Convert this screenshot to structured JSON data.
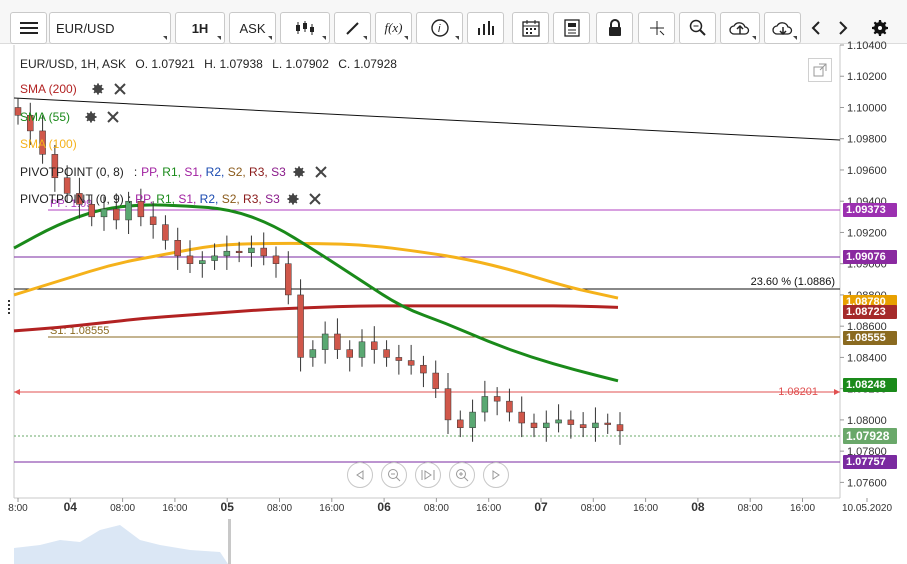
{
  "toolbar": {
    "symbol": "EUR/USD",
    "timeframe": "1H",
    "price_type": "ASK",
    "fx_label": "f(x)",
    "icons": [
      "menu-icon",
      "candles-icon",
      "draw-pencil-icon",
      "function-icon",
      "info-icon",
      "bar-chart-icon",
      "calendar-icon",
      "news-icon",
      "lock-icon",
      "crosshair-icon",
      "zoom-icon",
      "cloud-upload-icon",
      "cloud-download-icon",
      "chevron-left-icon",
      "chevron-right-icon",
      "settings-gear-icon"
    ]
  },
  "info": {
    "instrument": "EUR/USD, 1H, ASK",
    "open": "O. 1.07921",
    "high": "H. 1.07938",
    "low": "L. 1.07902",
    "close": "C. 1.07928"
  },
  "indicators": [
    {
      "label": "SMA (200)",
      "color": "#b22222"
    },
    {
      "label": "SMA (55)",
      "color": "#1a8a1a"
    },
    {
      "label": "SMA (100)",
      "color": "#f5b21b"
    }
  ],
  "pivots": [
    {
      "label": "PIVOTPOINT (0, 8)",
      "parts": [
        "PP,",
        "R1,",
        "S1,",
        "R2,",
        "S2,",
        "R3,",
        "S3"
      ]
    },
    {
      "label": "PIVOTPOINT (0, 9)",
      "parts": [
        "PP,",
        "R1,",
        "S1,",
        "R2,",
        "S2,",
        "R3,",
        "S3"
      ]
    }
  ],
  "pivot_colors": [
    "#a020a0",
    "#1a8a1a",
    "#a020a0",
    "#1a4ab0",
    "#8a5a1a",
    "#8a1a1a",
    "#8a1a8a"
  ],
  "annotations": {
    "fib": "23.60 % (1.0886)",
    "s1": "S1: 1.08555",
    "hline": "1.08201",
    "pp": "PP: 1.09"
  },
  "price_tags": [
    {
      "value": "1.09373",
      "color": "#9b30b0"
    },
    {
      "value": "1.09076",
      "color": "#8a2aa0"
    },
    {
      "value": "1.08780",
      "color": "#e8a000"
    },
    {
      "value": "1.08723",
      "color": "#a52a2a"
    },
    {
      "value": "1.08555",
      "color": "#8a6a20"
    },
    {
      "value": "1.08248",
      "color": "#1a8a1a"
    },
    {
      "value": "1.07928",
      "color": "#6aa86a"
    },
    {
      "value": "1.07757",
      "color": "#7a2aa0"
    }
  ],
  "y_axis": [
    "1.10400",
    "1.10200",
    "1.10000",
    "1.09800",
    "1.09600",
    "1.09400",
    "1.09200",
    "1.09000",
    "1.08800",
    "1.08600",
    "1.08400",
    "1.08200",
    "1.08000",
    "1.07800",
    "1.07600"
  ],
  "x_axis": [
    "8:00",
    "04",
    "08:00",
    "16:00",
    "05",
    "08:00",
    "16:00",
    "06",
    "08:00",
    "16:00",
    "07",
    "08:00",
    "16:00",
    "08",
    "08:00",
    "16:00",
    "10.05.2020"
  ],
  "chart_data": {
    "type": "line",
    "instrument": "EUR/USD",
    "candles_close_approx": [
      1.0995,
      1.0985,
      1.097,
      1.0955,
      1.0945,
      1.0938,
      1.093,
      1.0935,
      1.0928,
      1.094,
      1.093,
      1.0925,
      1.0915,
      1.0905,
      1.09,
      1.0902,
      1.0905,
      1.0908,
      1.0907,
      1.091,
      1.0905,
      1.09,
      1.088,
      1.084,
      1.0845,
      1.0855,
      1.0845,
      1.084,
      1.085,
      1.0845,
      1.084,
      1.0838,
      1.0835,
      1.083,
      1.082,
      1.08,
      1.0795,
      1.0805,
      1.0815,
      1.0812,
      1.0805,
      1.0798,
      1.0795,
      1.0798,
      1.08,
      1.0797,
      1.0795,
      1.0798,
      1.0797,
      1.0793
    ],
    "series": [
      {
        "name": "SMA (200)",
        "values": [
          1.0857,
          1.0859,
          1.0862,
          1.0865,
          1.0867,
          1.0869,
          1.0871,
          1.0872,
          1.0873,
          1.0873,
          1.0873,
          1.0873,
          1.0873,
          1.0873,
          1.0872
        ]
      },
      {
        "name": "SMA (55)",
        "values": [
          1.091,
          1.0925,
          1.0935,
          1.0938,
          1.0937,
          1.0935,
          1.0925,
          1.0908,
          1.089,
          1.0872,
          1.0862,
          1.085,
          1.084,
          1.0832,
          1.0825
        ]
      },
      {
        "name": "SMA (100)",
        "values": [
          1.088,
          1.089,
          1.09,
          1.0906,
          1.0912,
          1.0913,
          1.0913,
          1.0912,
          1.0908,
          1.0903,
          1.0895,
          1.0885,
          1.0878
        ]
      }
    ],
    "ylim": [
      1.075,
      1.104
    ]
  }
}
